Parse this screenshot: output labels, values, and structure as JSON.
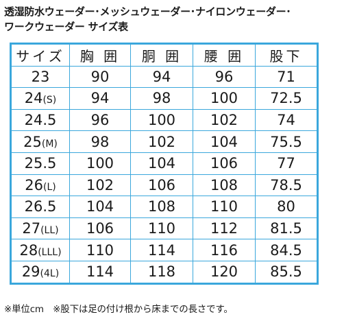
{
  "title": {
    "line1": "透湿防水ウェーダー･メッシュウェーダー･ナイロンウェーダー･",
    "line2": "ワークウェーダー サイズ表"
  },
  "table": {
    "headers": [
      "サイズ",
      "胸 囲",
      "胴 囲",
      "腰 囲",
      "股下"
    ],
    "rows": [
      {
        "size": "23",
        "label": "",
        "chest": "90",
        "waist": "94",
        "hip": "96",
        "inseam": "71"
      },
      {
        "size": "24",
        "label": "(S)",
        "chest": "94",
        "waist": "98",
        "hip": "100",
        "inseam": "72.5"
      },
      {
        "size": "24.5",
        "label": "",
        "chest": "96",
        "waist": "100",
        "hip": "102",
        "inseam": "74"
      },
      {
        "size": "25",
        "label": "(M)",
        "chest": "98",
        "waist": "102",
        "hip": "104",
        "inseam": "75.5"
      },
      {
        "size": "25.5",
        "label": "",
        "chest": "100",
        "waist": "104",
        "hip": "106",
        "inseam": "77"
      },
      {
        "size": "26",
        "label": "(L)",
        "chest": "102",
        "waist": "106",
        "hip": "108",
        "inseam": "78.5"
      },
      {
        "size": "26.5",
        "label": "",
        "chest": "104",
        "waist": "108",
        "hip": "110",
        "inseam": "80"
      },
      {
        "size": "27",
        "label": "(LL)",
        "chest": "106",
        "waist": "110",
        "hip": "112",
        "inseam": "81.5"
      },
      {
        "size": "28",
        "label": "(LLL)",
        "chest": "110",
        "waist": "114",
        "hip": "116",
        "inseam": "84.5"
      },
      {
        "size": "29",
        "label": "(4L)",
        "chest": "114",
        "waist": "118",
        "hip": "120",
        "inseam": "85.5"
      }
    ]
  },
  "footnote": "※単位cm　※股下は足の付け根から床までの長さです。",
  "colors": {
    "border": "#3aa7dc",
    "text": "#1a1a1a"
  }
}
